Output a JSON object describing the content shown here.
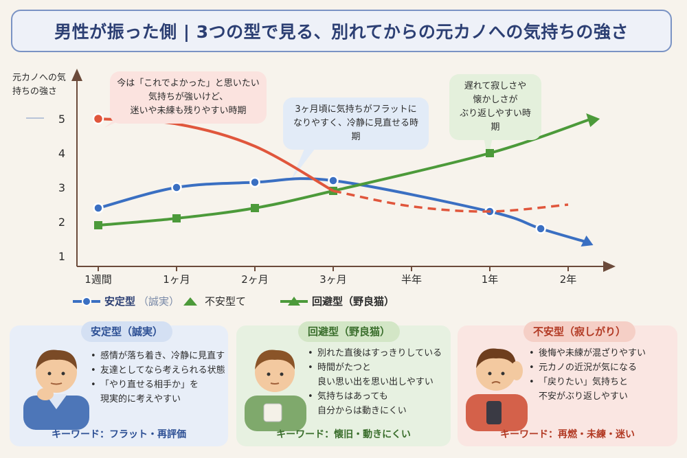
{
  "title": "男性が振った側 | 3つの型で見る、別れてからの元カノへの気持ちの強さ",
  "chart_data": {
    "type": "line",
    "ylabel": "元カノへの気持ちの強さ",
    "yticks": [
      "1",
      "2",
      "3",
      "4",
      "5"
    ],
    "ylim": [
      1,
      5.5
    ],
    "categories": [
      "1週間",
      "1ヶ月",
      "2ヶ月",
      "3ヶ月",
      "半年",
      "1年",
      "2年"
    ],
    "series": [
      {
        "name": "安定型（誠実）",
        "color": "#3a6fc2",
        "points": [
          [
            0,
            2.4
          ],
          [
            1,
            3.0
          ],
          [
            2,
            3.15
          ],
          [
            3,
            3.2
          ],
          [
            5,
            2.3
          ],
          [
            5.65,
            1.8
          ]
        ],
        "end": [
          6.25,
          1.4
        ]
      },
      {
        "name": "回避型（野良猫）",
        "color": "#4c9a3a",
        "points": [
          [
            0,
            1.9
          ],
          [
            1,
            2.1
          ],
          [
            2,
            2.4
          ],
          [
            3,
            2.9
          ],
          [
            5,
            4.0
          ]
        ],
        "end": [
          6.3,
          5.0
        ]
      },
      {
        "name": "不安型",
        "color": "#e0563c",
        "solid": [
          [
            0,
            5.0
          ],
          [
            1,
            4.85
          ],
          [
            2,
            4.2
          ],
          [
            3,
            2.9
          ]
        ],
        "dashed": [
          [
            3,
            2.9
          ],
          [
            4,
            2.45
          ],
          [
            5,
            2.3
          ],
          [
            6,
            2.5
          ]
        ]
      }
    ]
  },
  "bubbles": {
    "red": "今は「これでよかった」と思いたい\n気持ちが強いけど、\n迷いや未練も残りやすい時期",
    "blue": "3ヶ月頃に気持ちがフラットに\nなりやすく、冷静に見直せる時期",
    "green": "遅れて寂しさや\n懐かしさが\nぶり返しやすい時期"
  },
  "legend": {
    "stable_main": "安定型",
    "stable_sub": "（誠実）",
    "anxious": "不安型て",
    "avoidant": "回避型（野良猫）"
  },
  "panels": {
    "stable": {
      "title": "安定型（誠実）",
      "items": [
        "感情が落ち着き、冷静に見直す",
        "友達としてなら考えられる状態",
        "「やり直せる相手か」を"
      ],
      "item_cont": "現実的に考えやすい",
      "keyword": "キーワード：フラット・再評価",
      "color": "#3a6fc2"
    },
    "avoidant": {
      "title": "回避型（野良猫）",
      "items": [
        "別れた直後はすっきりしている",
        "時間がたつと"
      ],
      "item_cont": "良い思い出を思い出しやすい",
      "items2": [
        "気持ちはあっても"
      ],
      "item2_cont": "自分からは動きにくい",
      "keyword": "キーワード：懐旧・動きにくい",
      "color": "#4c9a3a"
    },
    "anxious": {
      "title": "不安型（寂しがり）",
      "items": [
        "後悔や未練が混ざりやすい",
        "元カノの近況が気になる",
        "「戻りたい」気持ちと"
      ],
      "item_cont": "不安がぶり返しやすい",
      "keyword": "キーワード：再燃・未練・迷い",
      "color": "#e0563c"
    }
  }
}
